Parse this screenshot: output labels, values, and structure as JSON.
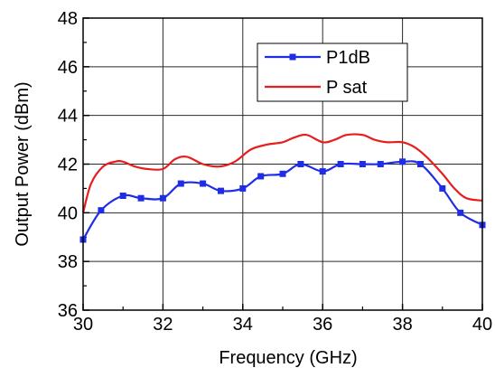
{
  "chart_data": {
    "type": "line",
    "xlabel": "Frequency  (GHz)",
    "ylabel": "Output Power  (dBm)",
    "xlim": [
      30,
      40
    ],
    "ylim": [
      36,
      48
    ],
    "xticks": [
      30,
      32,
      34,
      36,
      38,
      40
    ],
    "yticks": [
      36,
      38,
      40,
      42,
      44,
      46,
      48
    ],
    "grid": true,
    "legend_position": "top-right",
    "series": [
      {
        "name": "P1dB",
        "color": "#1f2de6",
        "marker": "square",
        "x": [
          30,
          30.45,
          31,
          31.45,
          32,
          32.45,
          33,
          33.45,
          34,
          34.45,
          35,
          35.45,
          36,
          36.45,
          37,
          37.45,
          38,
          38.45,
          39,
          39.45,
          40
        ],
        "y": [
          38.9,
          40.1,
          40.7,
          40.6,
          40.6,
          41.2,
          41.2,
          40.9,
          41.0,
          41.5,
          41.6,
          42.0,
          41.7,
          42.0,
          42.0,
          42.0,
          42.1,
          42.0,
          41.0,
          40.0,
          39.5
        ]
      },
      {
        "name": "P sat",
        "color": "#e61e1e",
        "marker": "none",
        "x": [
          30,
          30.2,
          30.5,
          30.8,
          31.0,
          31.3,
          31.6,
          32.0,
          32.3,
          32.6,
          33.0,
          33.4,
          33.8,
          34.2,
          34.6,
          35.0,
          35.3,
          35.6,
          36.0,
          36.3,
          36.6,
          37.0,
          37.3,
          37.6,
          38.0,
          38.3,
          38.6,
          39.0,
          39.3,
          39.6,
          40.0
        ],
        "y": [
          40.0,
          41.2,
          41.9,
          42.1,
          42.1,
          41.9,
          41.8,
          41.8,
          42.2,
          42.3,
          42.0,
          41.9,
          42.1,
          42.6,
          42.8,
          42.9,
          43.1,
          43.2,
          42.9,
          43.0,
          43.2,
          43.2,
          43.0,
          42.9,
          42.9,
          42.7,
          42.3,
          41.6,
          41.0,
          40.6,
          40.5
        ]
      }
    ]
  }
}
